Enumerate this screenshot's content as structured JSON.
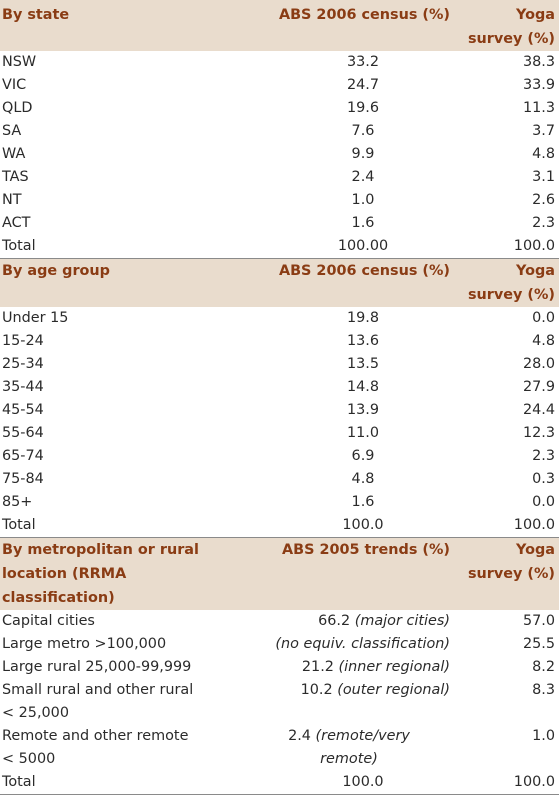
{
  "sections": [
    {
      "header": {
        "label": "By state",
        "col2": "ABS 2006 census (%)",
        "col3_line1": "Yoga",
        "col3_line2": "survey (%)"
      },
      "rows": [
        {
          "label": "NSW",
          "abs": "33.2",
          "yoga": "38.3"
        },
        {
          "label": "VIC",
          "abs": "24.7",
          "yoga": "33.9"
        },
        {
          "label": "QLD",
          "abs": "19.6",
          "yoga": "11.3"
        },
        {
          "label": "SA",
          "abs": "7.6",
          "yoga": "3.7"
        },
        {
          "label": "WA",
          "abs": "9.9",
          "yoga": "4.8"
        },
        {
          "label": "TAS",
          "abs": "2.4",
          "yoga": "3.1"
        },
        {
          "label": "NT",
          "abs": "1.0",
          "yoga": "2.6"
        },
        {
          "label": "ACT",
          "abs": "1.6",
          "yoga": "2.3"
        },
        {
          "label": "Total",
          "abs": "100.00",
          "yoga": "100.0"
        }
      ]
    },
    {
      "header": {
        "label": "By age group",
        "col2": "ABS 2006 census (%)",
        "col3_line1": "Yoga",
        "col3_line2": "survey (%)"
      },
      "rows": [
        {
          "label": "Under 15",
          "abs": "19.8",
          "yoga": "0.0"
        },
        {
          "label": "15-24",
          "abs": "13.6",
          "yoga": "4.8"
        },
        {
          "label": "25-34",
          "abs": "13.5",
          "yoga": "28.0"
        },
        {
          "label": "35-44",
          "abs": "14.8",
          "yoga": "27.9"
        },
        {
          "label": "45-54",
          "abs": "13.9",
          "yoga": "24.4"
        },
        {
          "label": "55-64",
          "abs": "11.0",
          "yoga": "12.3"
        },
        {
          "label": "65-74",
          "abs": "6.9",
          "yoga": "2.3"
        },
        {
          "label": "75-84",
          "abs": "4.8",
          "yoga": "0.3"
        },
        {
          "label": "85+",
          "abs": "1.6",
          "yoga": "0.0"
        },
        {
          "label": "Total",
          "abs": "100.0",
          "yoga": "100.0"
        }
      ]
    },
    {
      "header": {
        "label_line1": "By metropolitan or rural",
        "label_line2": "location (RRMA classification)",
        "col2": "ABS 2005 trends (%)",
        "col3_line1": "Yoga",
        "col3_line2": "survey (%)"
      },
      "rows": [
        {
          "label": "Capital cities",
          "abs_value": "66.2",
          "abs_note": "(major cities)",
          "yoga": "57.0"
        },
        {
          "label": "Large metro >100,000",
          "abs_value": "",
          "abs_note": "(no equiv. classification)",
          "yoga": "25.5"
        },
        {
          "label": "Large rural 25,000-99,999",
          "abs_value": "21.2",
          "abs_note": "(inner regional)",
          "yoga": "8.2"
        },
        {
          "label_line1": "Small rural and other rural",
          "label_line2": "< 25,000",
          "abs_value": "10.2",
          "abs_note": "(outer regional)",
          "yoga": "8.3"
        },
        {
          "label_line1": "Remote and other remote",
          "label_line2": "< 5000",
          "abs_value": "2.4",
          "abs_note_line1": "(remote/very",
          "abs_note_line2": "remote)",
          "yoga": "1.0"
        },
        {
          "label": "Total",
          "abs": "100.0",
          "yoga": "100.0"
        }
      ]
    }
  ]
}
